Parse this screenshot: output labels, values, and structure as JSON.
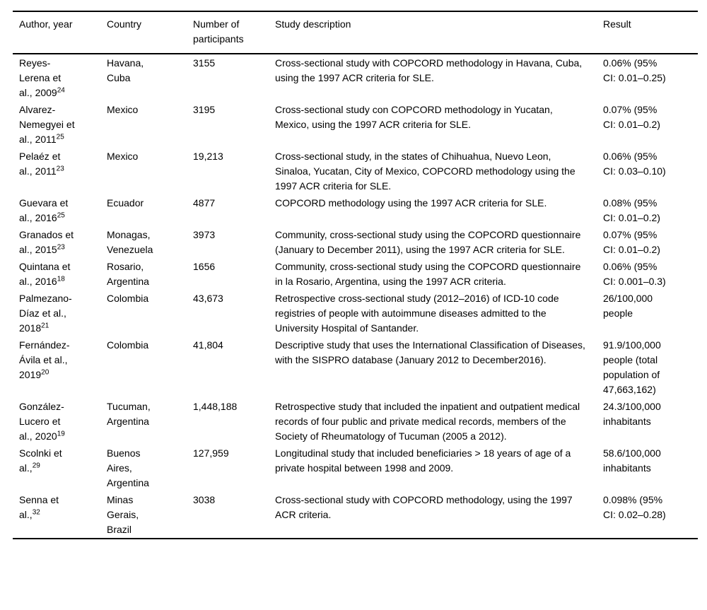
{
  "colors": {
    "background": "#ffffff",
    "text": "#000000",
    "rule": "#000000"
  },
  "table": {
    "columns": [
      {
        "key": "author",
        "label": "Author, year"
      },
      {
        "key": "country",
        "label": "Country"
      },
      {
        "key": "participants",
        "label": "Number of participants"
      },
      {
        "key": "description",
        "label": "Study description"
      },
      {
        "key": "result",
        "label": "Result"
      }
    ],
    "rows": [
      {
        "author": "Reyes-Lerena et al., 2009",
        "author_ref": "24",
        "country": "Havana, Cuba",
        "participants": "3155",
        "description": "Cross-sectional study with COPCORD methodology in Havana, Cuba, using the 1997 ACR criteria for SLE.",
        "result": "0.06% (95% CI: 0.01–0.25)"
      },
      {
        "author": "Alvarez-Nemegyei et al., 2011",
        "author_ref": "25",
        "country": "Mexico",
        "participants": "3195",
        "description": "Cross-sectional study con COPCORD methodology in Yucatan, Mexico, using the 1997 ACR criteria for SLE.",
        "result": "0.07% (95% CI: 0.01–0.2)"
      },
      {
        "author": "Pelaéz et al., 2011",
        "author_ref": "23",
        "country": "Mexico",
        "participants": "19,213",
        "description": "Cross-sectional study, in the states of Chihuahua, Nuevo Leon, Sinaloa, Yucatan, City of Mexico, COPCORD methodology using the 1997 ACR criteria for SLE.",
        "result": "0.06% (95% CI: 0.03–0.10)"
      },
      {
        "author": "Guevara et al., 2016",
        "author_ref": "25",
        "country": "Ecuador",
        "participants": "4877",
        "description": "COPCORD methodology using the 1997 ACR criteria for SLE.",
        "result": "0.08% (95% CI: 0.01–0.2)"
      },
      {
        "author": "Granados et al., 2015",
        "author_ref": "23",
        "country": "Monagas, Venezuela",
        "participants": "3973",
        "description": "Community, cross-sectional study using the COPCORD questionnaire (January to December 2011), using the 1997 ACR criteria for SLE.",
        "result": "0.07% (95% CI: 0.01–0.2)"
      },
      {
        "author": "Quintana et al., 2016",
        "author_ref": "18",
        "country": "Rosario, Argentina",
        "participants": "1656",
        "description": "Community, cross-sectional study using the COPCORD questionnaire in la Rosario, Argentina, using the 1997 ACR criteria.",
        "result": "0.06% (95% CI: 0.001–0.3)"
      },
      {
        "author": "Palmezano-Díaz et al., 2018",
        "author_ref": "21",
        "country": "Colombia",
        "participants": "43,673",
        "description": "Retrospective cross-sectional study (2012–2016) of ICD-10 code registries of people with autoimmune diseases admitted to the University Hospital of Santander.",
        "result": "26/100,000 people"
      },
      {
        "author": "Fernández-Ávila et al., 2019",
        "author_ref": "20",
        "country": "Colombia",
        "participants": "41,804",
        "description": "Descriptive study that uses the International Classification of Diseases, with the SISPRO database (January 2012 to December2016).",
        "result": "91.9/100,000 people (total population of 47,663,162)"
      },
      {
        "author": "González-Lucero et al., 2020",
        "author_ref": "19",
        "country": "Tucuman, Argentina",
        "participants": "1,448,188",
        "description": "Retrospective study that included the inpatient and outpatient medical records of four public and private medical records, members of the Society of Rheumatology of Tucuman (2005 a 2012).",
        "result": "24.3/100,000 inhabitants"
      },
      {
        "author": "Scolnki et al.,",
        "author_ref": "29",
        "country": "Buenos Aires, Argentina",
        "participants": "127,959",
        "description": "Longitudinal study that included beneficiaries > 18 years of age of a private hospital between 1998 and 2009.",
        "result": "58.6/100,000 inhabitants"
      },
      {
        "author": "Senna et al.,",
        "author_ref": "32",
        "country": "Minas Gerais, Brazil",
        "participants": "3038",
        "description": "Cross-sectional study with COPCORD methodology, using the 1997 ACR criteria.",
        "result": "0.098% (95% CI: 0.02–0.28)"
      }
    ]
  }
}
